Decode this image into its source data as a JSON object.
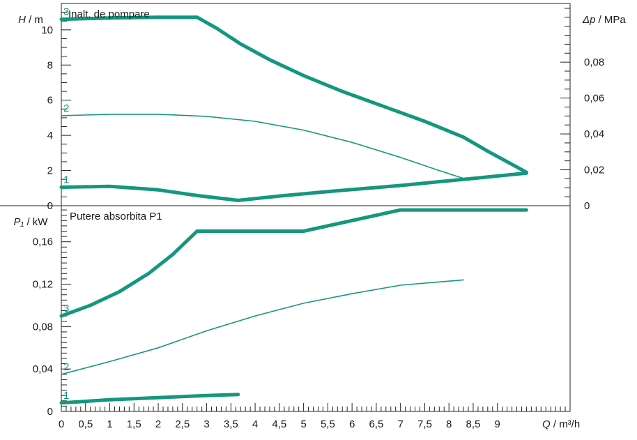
{
  "chart_data": {
    "type": "line",
    "curve_color": "#14977e",
    "x_axis": {
      "quantity": "Q",
      "unit": "m³/h",
      "range": [
        0,
        10.5
      ],
      "tick_values": [
        0,
        0.5,
        1,
        1.5,
        2,
        2.5,
        3,
        3.5,
        4,
        4.5,
        5,
        5.5,
        6,
        6.5,
        7,
        7.5,
        8,
        8.5,
        9
      ],
      "tick_labels": [
        "0",
        "0,5",
        "1",
        "1,5",
        "2",
        "2,5",
        "3",
        "3,5",
        "4",
        "4,5",
        "5",
        "5,5",
        "6",
        "6,5",
        "7",
        "7,5",
        "8",
        "8,5",
        "9"
      ],
      "minor_step": 0.1
    },
    "panels": [
      {
        "id": "head",
        "title": "Inalt. de pompare",
        "y_axis": {
          "quantity": "H",
          "unit": "m",
          "range": [
            0,
            11.5
          ],
          "tick_values": [
            0,
            2,
            4,
            6,
            8,
            10
          ],
          "tick_labels": [
            "0",
            "2",
            "4",
            "6",
            "8",
            "10"
          ],
          "minor_step": 0.5
        },
        "y2_axis": {
          "quantity": "Δp",
          "unit": "MPa",
          "range": [
            0,
            0.1127
          ],
          "tick_values": [
            0,
            0.02,
            0.04,
            0.06,
            0.08
          ],
          "tick_labels": [
            "0",
            "0,02",
            "0,04",
            "0,06",
            "0,08"
          ],
          "minor_step": 0.005
        },
        "series": [
          {
            "name": "3",
            "thick": true,
            "points": [
              [
                0,
                10.6
              ],
              [
                1,
                10.68
              ],
              [
                2,
                10.72
              ],
              [
                2.8,
                10.72
              ],
              [
                3.2,
                10.1
              ],
              [
                3.7,
                9.2
              ],
              [
                4.3,
                8.3
              ],
              [
                5,
                7.4
              ],
              [
                5.8,
                6.5
              ],
              [
                6.7,
                5.6
              ],
              [
                7.5,
                4.8
              ],
              [
                8.3,
                3.9
              ],
              [
                8.8,
                3.1
              ],
              [
                9.6,
                1.9
              ]
            ]
          },
          {
            "name": "2",
            "thick": false,
            "points": [
              [
                0,
                5.12
              ],
              [
                1,
                5.2
              ],
              [
                2,
                5.2
              ],
              [
                3,
                5.08
              ],
              [
                4,
                4.8
              ],
              [
                5,
                4.3
              ],
              [
                6,
                3.6
              ],
              [
                7,
                2.75
              ],
              [
                7.8,
                2.0
              ],
              [
                8.3,
                1.55
              ]
            ]
          },
          {
            "name": "1",
            "thick": true,
            "points": [
              [
                0,
                1.05
              ],
              [
                1,
                1.1
              ],
              [
                2,
                0.9
              ],
              [
                2.8,
                0.58
              ],
              [
                3.65,
                0.3
              ],
              [
                4.5,
                0.55
              ],
              [
                5.5,
                0.8
              ],
              [
                7,
                1.15
              ],
              [
                8.3,
                1.5
              ],
              [
                9.6,
                1.85
              ]
            ]
          }
        ]
      },
      {
        "id": "power",
        "title": "Putere absorbita P1",
        "y_axis": {
          "quantity": "P₁",
          "unit": "kW",
          "range": [
            0,
            0.194
          ],
          "tick_values": [
            0,
            0.04,
            0.08,
            0.12,
            0.16
          ],
          "tick_labels": [
            "0",
            "0,04",
            "0,08",
            "0,12",
            "0,16"
          ],
          "minor_step": 0.005
        },
        "series": [
          {
            "name": "3",
            "thick": true,
            "points": [
              [
                0,
                0.09
              ],
              [
                0.6,
                0.1
              ],
              [
                1.2,
                0.113
              ],
              [
                1.8,
                0.13
              ],
              [
                2.3,
                0.148
              ],
              [
                2.8,
                0.17
              ],
              [
                5,
                0.17
              ],
              [
                7,
                0.19
              ],
              [
                9.6,
                0.19
              ]
            ]
          },
          {
            "name": "2",
            "thick": false,
            "points": [
              [
                0,
                0.035
              ],
              [
                1,
                0.047
              ],
              [
                2,
                0.06
              ],
              [
                3,
                0.076
              ],
              [
                4,
                0.09
              ],
              [
                5,
                0.102
              ],
              [
                6,
                0.111
              ],
              [
                7,
                0.119
              ],
              [
                8.3,
                0.124
              ]
            ]
          },
          {
            "name": "1",
            "thick": true,
            "points": [
              [
                0,
                0.008
              ],
              [
                1,
                0.011
              ],
              [
                2,
                0.013
              ],
              [
                3,
                0.015
              ],
              [
                3.65,
                0.016
              ]
            ]
          }
        ]
      }
    ]
  }
}
